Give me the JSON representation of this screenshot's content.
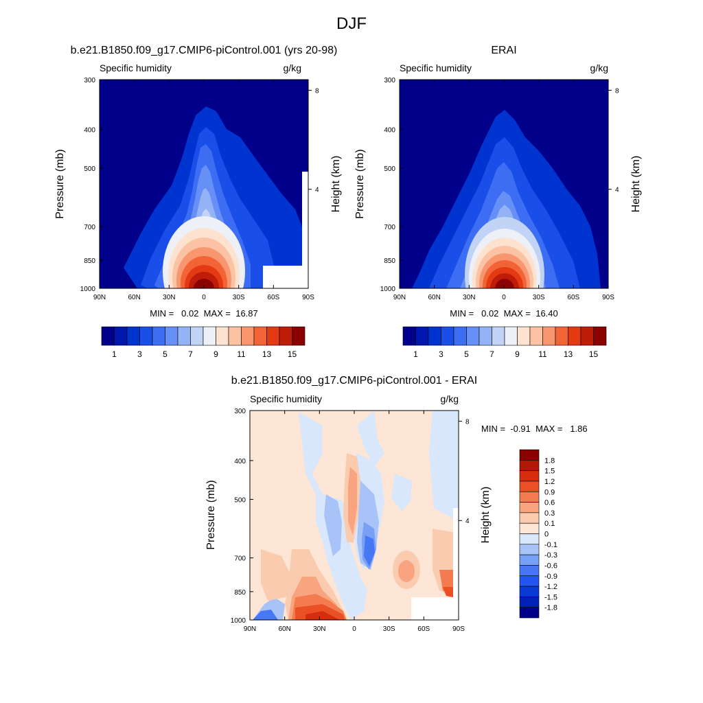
{
  "figure": {
    "title": "DJF"
  },
  "chart_data": [
    {
      "type": "heatmap",
      "panel": "model",
      "title": "b.e21.B1850.f09_g17.CMIP6-piControl.001 (yrs 20-98)",
      "left_label": "Specific humidity",
      "right_label": "g/kg",
      "ylabel": "Pressure (mb)",
      "y2label": "Height (km)",
      "x_ticks": [
        "90N",
        "60N",
        "30N",
        "0",
        "30S",
        "60S",
        "90S"
      ],
      "y_ticks": [
        "300",
        "400",
        "500",
        "700",
        "850",
        "1000"
      ],
      "y2_ticks": [
        "8",
        "4"
      ],
      "xlim": [
        90,
        -90
      ],
      "ylim": [
        1000,
        300
      ],
      "peak_value": 16.87,
      "summary": "MIN =   0.02  MAX =  16.87",
      "levels": [
        1,
        2,
        3,
        4,
        5,
        6,
        7,
        8,
        9,
        10,
        11,
        12,
        13,
        14,
        15
      ],
      "colorbar_labels": [
        "1",
        "3",
        "5",
        "7",
        "9",
        "11",
        "13",
        "15"
      ],
      "colors": [
        "#00008b",
        "#0018b0",
        "#0034d0",
        "#1a4ee8",
        "#3d6df2",
        "#6690f5",
        "#93b3f5",
        "#c2d4f5",
        "#eef0f7",
        "#fde3cf",
        "#fbc2a3",
        "#f8976f",
        "#f26436",
        "#e33a14",
        "#c01c0a",
        "#8b0000"
      ]
    },
    {
      "type": "heatmap",
      "panel": "obs",
      "title": "ERAI",
      "left_label": "Specific humidity",
      "right_label": "g/kg",
      "ylabel": "Pressure (mb)",
      "y2label": "Height (km)",
      "x_ticks": [
        "90N",
        "60N",
        "30N",
        "0",
        "30S",
        "60S",
        "90S"
      ],
      "y_ticks": [
        "300",
        "400",
        "500",
        "700",
        "850",
        "1000"
      ],
      "y2_ticks": [
        "8",
        "4"
      ],
      "xlim": [
        90,
        -90
      ],
      "ylim": [
        1000,
        300
      ],
      "peak_value": 16.4,
      "summary": "MIN =   0.02  MAX =  16.40",
      "levels": [
        1,
        2,
        3,
        4,
        5,
        6,
        7,
        8,
        9,
        10,
        11,
        12,
        13,
        14,
        15
      ],
      "colorbar_labels": [
        "1",
        "3",
        "5",
        "7",
        "9",
        "11",
        "13",
        "15"
      ],
      "colors": [
        "#00008b",
        "#0018b0",
        "#0034d0",
        "#1a4ee8",
        "#3d6df2",
        "#6690f5",
        "#93b3f5",
        "#c2d4f5",
        "#eef0f7",
        "#fde3cf",
        "#fbc2a3",
        "#f8976f",
        "#f26436",
        "#e33a14",
        "#c01c0a",
        "#8b0000"
      ]
    },
    {
      "type": "heatmap",
      "panel": "diff",
      "title": "b.e21.B1850.f09_g17.CMIP6-piControl.001 - ERAI",
      "left_label": "Specific humidity",
      "right_label": "g/kg",
      "ylabel": "Pressure (mb)",
      "y2label": "Height (km)",
      "x_ticks": [
        "90N",
        "60N",
        "30N",
        "0",
        "30S",
        "60S",
        "90S"
      ],
      "y_ticks": [
        "300",
        "400",
        "500",
        "700",
        "850",
        "1000"
      ],
      "y2_ticks": [
        "8",
        "4"
      ],
      "xlim": [
        90,
        -90
      ],
      "ylim": [
        1000,
        300
      ],
      "summary": "MIN =  -0.91  MAX =   1.86",
      "levels": [
        -1.8,
        -1.5,
        -1.2,
        -0.9,
        -0.6,
        -0.3,
        -0.1,
        0,
        0.1,
        0.3,
        0.6,
        0.9,
        1.2,
        1.5,
        1.8
      ],
      "colorbar_labels": [
        "1.8",
        "1.5",
        "1.2",
        "0.9",
        "0.6",
        "0.3",
        "0.1",
        "0",
        "-0.1",
        "-0.3",
        "-0.6",
        "-0.9",
        "-1.2",
        "-1.5",
        "-1.8"
      ],
      "colors": [
        "#00008b",
        "#0022b8",
        "#0a3bd6",
        "#2256ef",
        "#4877f4",
        "#77a0f6",
        "#a7c3f7",
        "#d8e7fb",
        "#fde6d6",
        "#fbcbb0",
        "#f8a47f",
        "#f47a4f",
        "#ea4f25",
        "#d52d0d",
        "#b31806",
        "#8b0000"
      ]
    }
  ]
}
